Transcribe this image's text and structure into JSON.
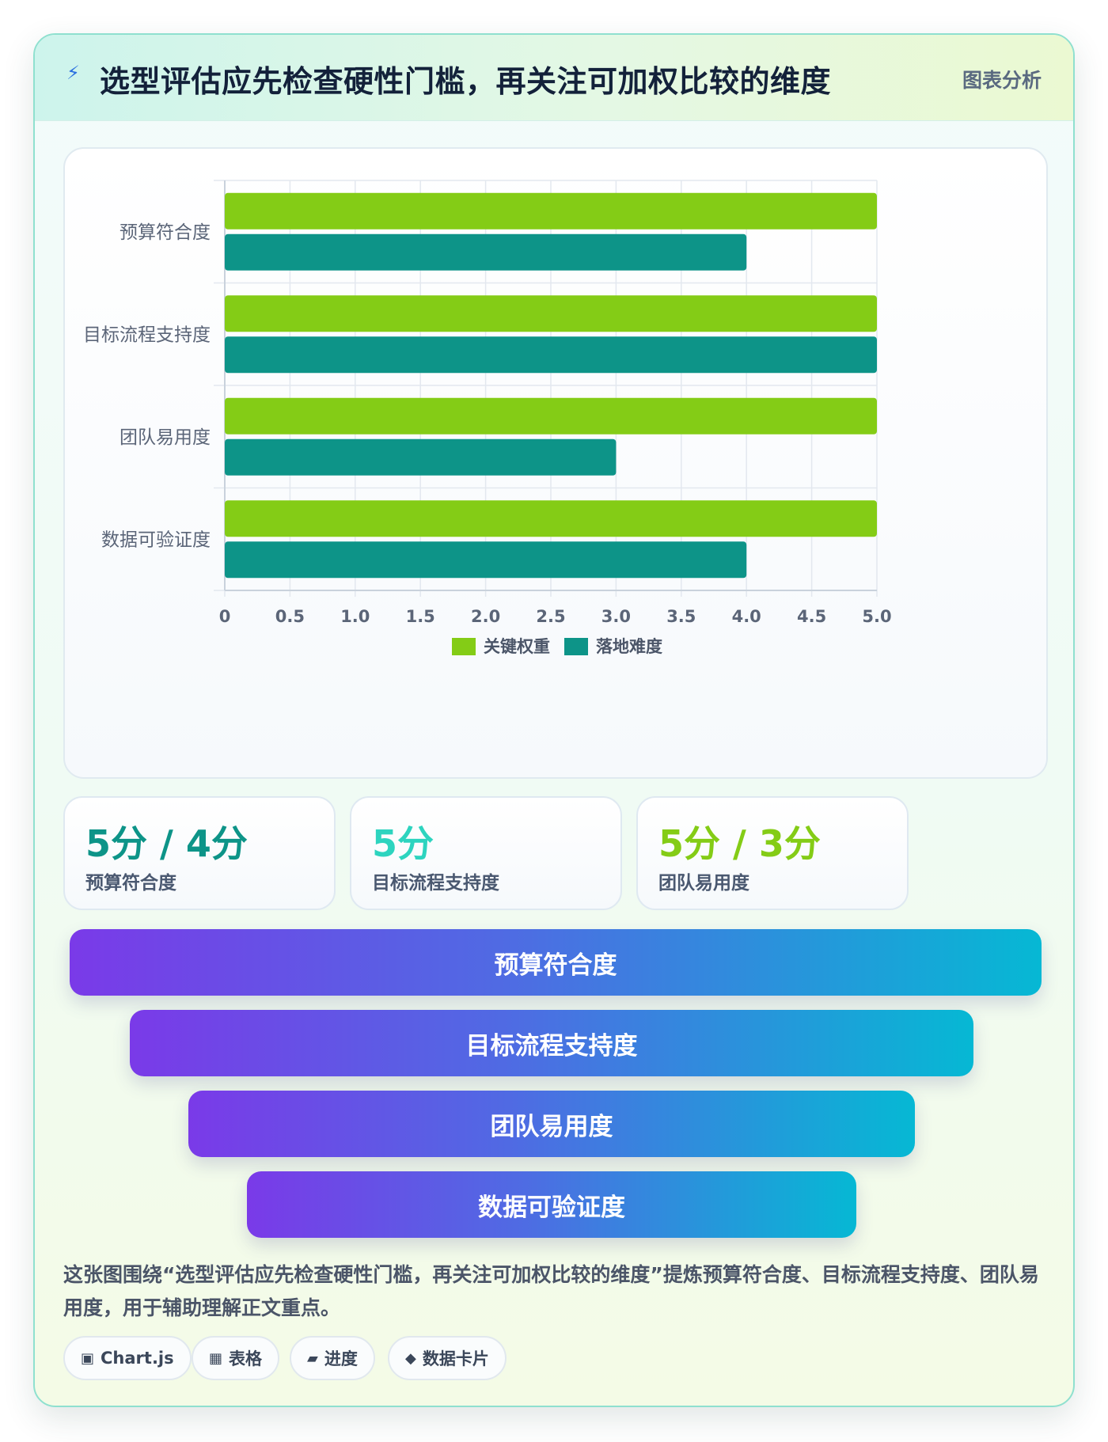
{
  "header": {
    "icon": "lightning-icon",
    "title": "选型评估应先检查硬性门槛，再关注可加权比较的维度",
    "tag": "图表分析"
  },
  "chart_data": {
    "type": "bar",
    "orientation": "horizontal",
    "categories": [
      "预算符合度",
      "目标流程支持度",
      "团队易用度",
      "数据可验证度"
    ],
    "series": [
      {
        "name": "关键权重",
        "color": "#84cc16",
        "values": [
          5,
          5,
          5,
          5
        ]
      },
      {
        "name": "落地难度",
        "color": "#0d9488",
        "values": [
          4,
          5,
          3,
          4
        ]
      }
    ],
    "xlim": [
      0,
      5
    ],
    "x_ticks": [
      "0",
      "0.5",
      "1.0",
      "1.5",
      "2.0",
      "2.5",
      "3.0",
      "3.5",
      "4.0",
      "4.5",
      "5.0"
    ],
    "grid": true,
    "legend_position": "bottom"
  },
  "stats": [
    {
      "value": "5分 / 4分",
      "label": "预算符合度",
      "color": "#0d9488"
    },
    {
      "value": "5分",
      "label": "目标流程支持度",
      "color": "#2dd4bf"
    },
    {
      "value": "5分 / 3分",
      "label": "团队易用度",
      "color": "#84cc16"
    }
  ],
  "funnel": [
    "预算符合度",
    "目标流程支持度",
    "团队易用度",
    "数据可验证度"
  ],
  "description": "这张图围绕“选型评估应先检查硬性门槛，再关注可加权比较的维度”提炼预算符合度、目标流程支持度、团队易用度，用于辅助理解正文重点。",
  "chips": [
    {
      "icon": "▣",
      "icon_name": "chart-icon",
      "label": "Chart.js"
    },
    {
      "icon": "▦",
      "icon_name": "table-icon",
      "label": "表格"
    },
    {
      "icon": "▰",
      "icon_name": "progress-icon",
      "label": "进度"
    },
    {
      "icon": "◆",
      "icon_name": "data-card-icon",
      "label": "数据卡片"
    }
  ]
}
